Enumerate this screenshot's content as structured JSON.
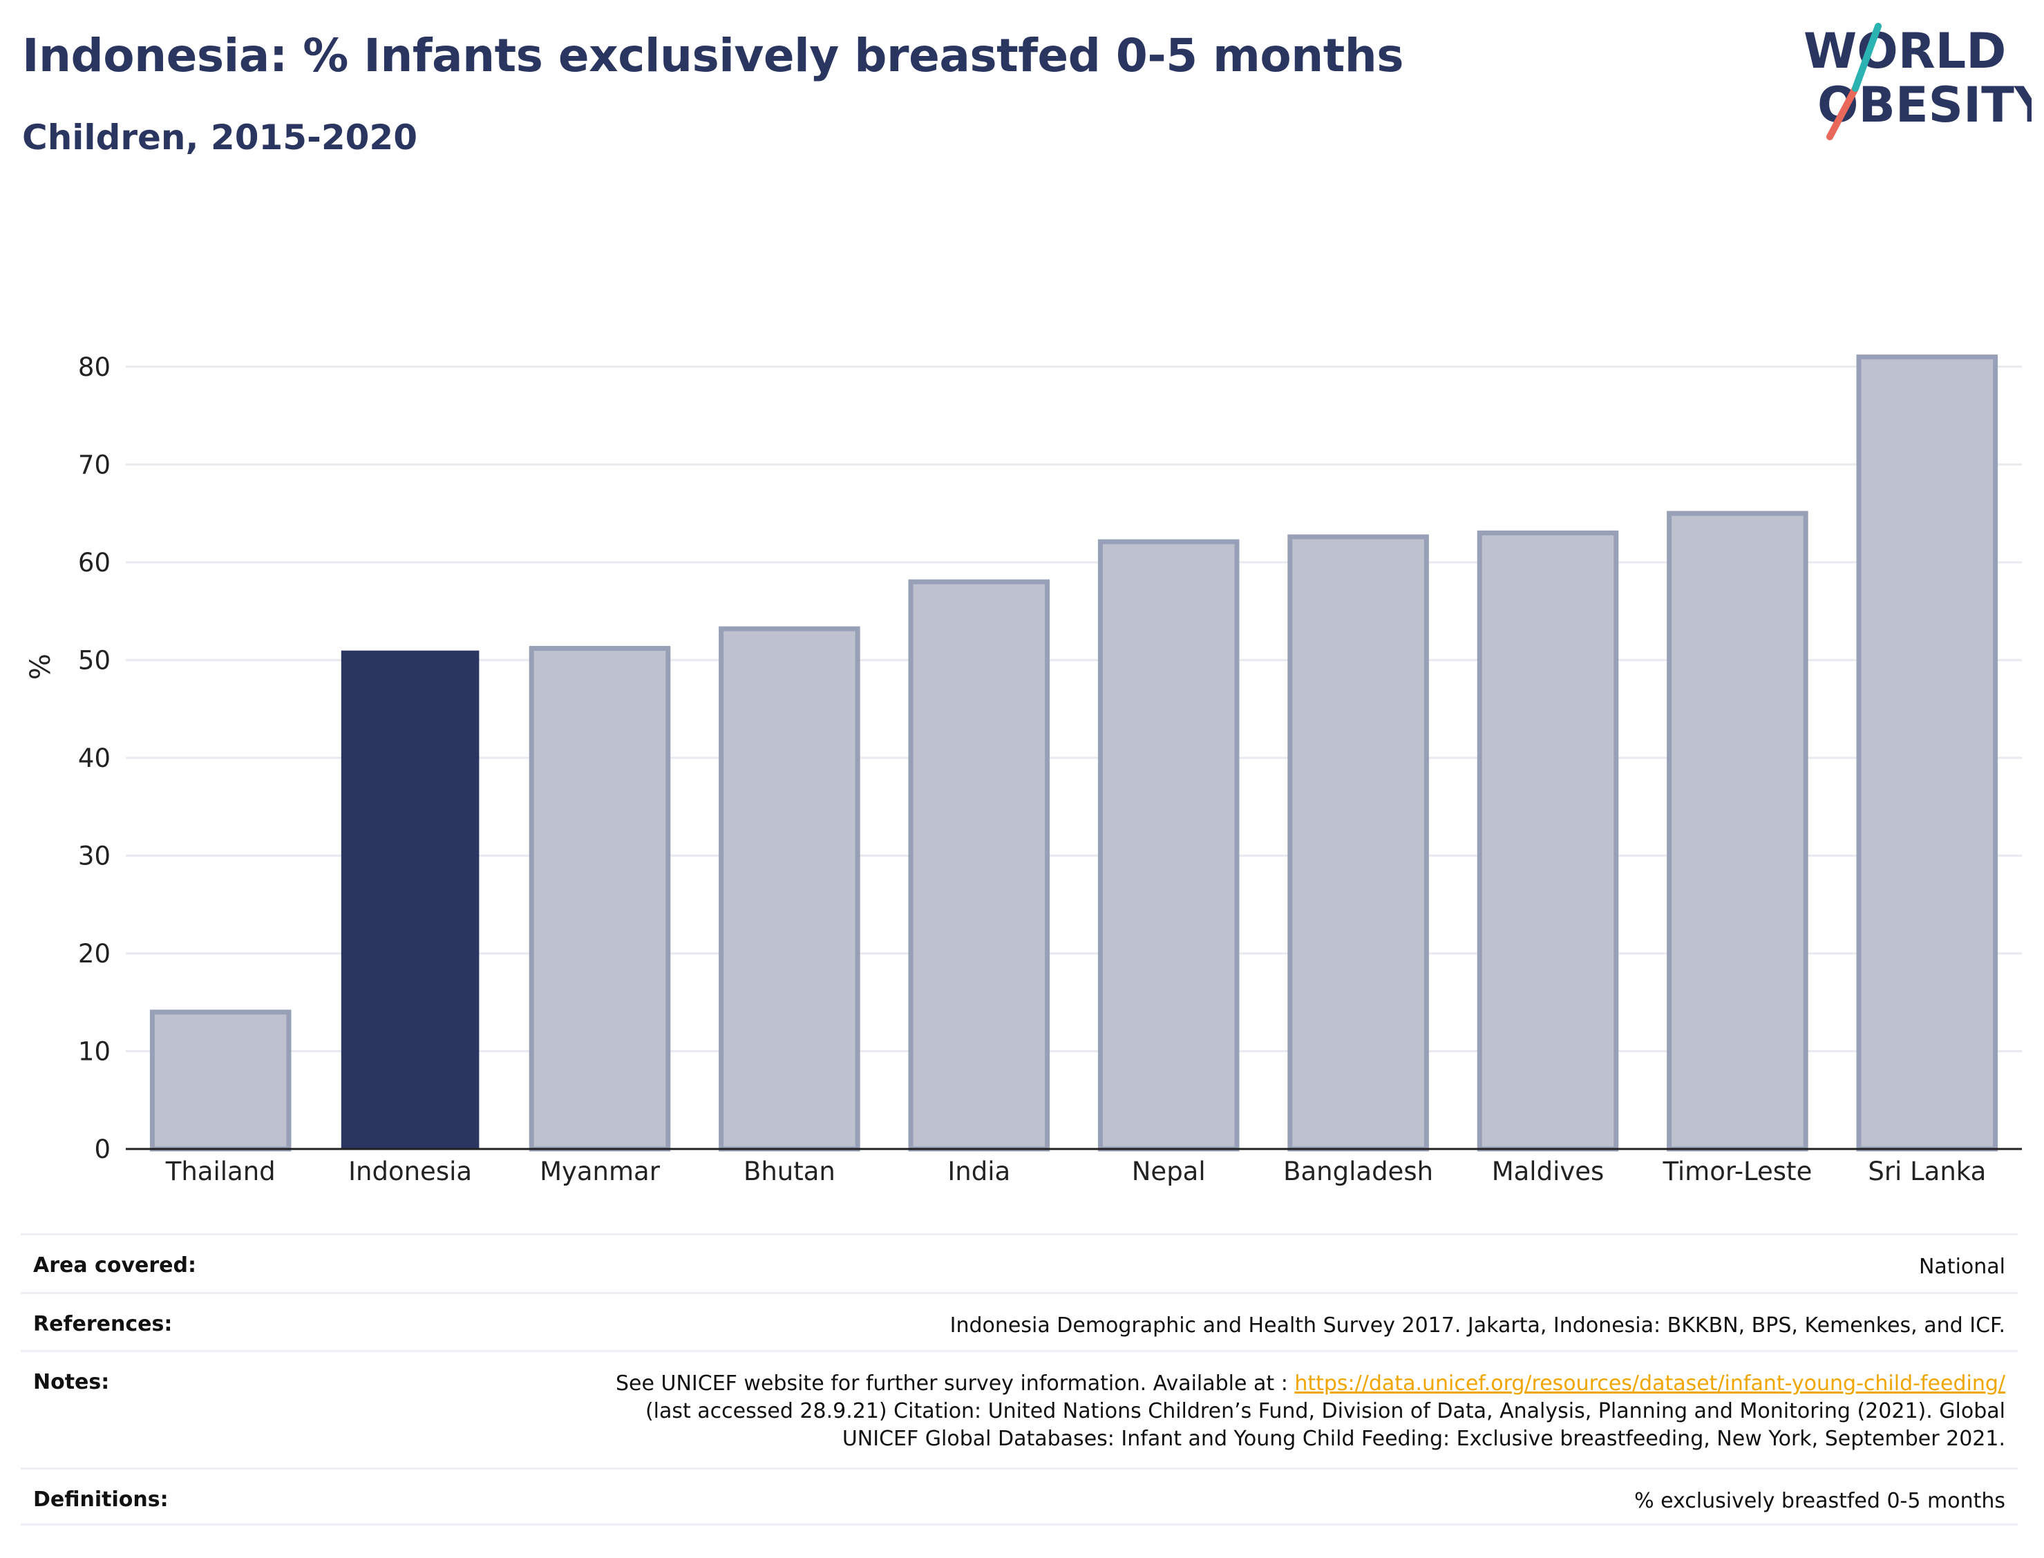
{
  "header": {
    "title": "Indonesia: % Infants exclusively breastfed 0-5 months",
    "subtitle": "Children, 2015-2020"
  },
  "logo": {
    "line1": "WORLD",
    "line2": "OBESITY"
  },
  "colors": {
    "highlight": "#2b3660",
    "other": "#bec2cf",
    "other_stroke": "#98a0b8",
    "link": "#f0a500"
  },
  "chart_data": {
    "type": "bar",
    "categories": [
      "Thailand",
      "Indonesia",
      "Myanmar",
      "Bhutan",
      "India",
      "Nepal",
      "Bangladesh",
      "Maldives",
      "Timor-Leste",
      "Sri Lanka"
    ],
    "values": [
      14.0,
      50.9,
      51.2,
      53.2,
      58.0,
      62.1,
      62.6,
      63.0,
      65.0,
      81.0
    ],
    "highlight": "Indonesia",
    "ylabel": "%",
    "xlabel": "",
    "ylim": [
      0,
      85
    ],
    "yticks": [
      0,
      10,
      20,
      30,
      40,
      50,
      60,
      70,
      80
    ],
    "grid": true
  },
  "info": {
    "area": {
      "label": "Area covered:",
      "value": "National"
    },
    "references": {
      "label": "References:",
      "value": "Indonesia Demographic and Health Survey 2017. Jakarta, Indonesia: BKKBN, BPS, Kemenkes, and ICF."
    },
    "notes": {
      "label": "Notes:",
      "line1_prefix": "See UNICEF website for further survey information. Available at : ",
      "link": "https://data.unicef.org/resources/dataset/infant-young-child-feeding/",
      "line2": "(last accessed 28.9.21) Citation: United Nations Children’s Fund, Division of Data, Analysis, Planning and Monitoring (2021). Global",
      "line3": "UNICEF Global Databases: Infant and Young Child Feeding: Exclusive breastfeeding, New York, September 2021."
    },
    "definitions": {
      "label": "Definitions:",
      "value": "% exclusively breastfed 0-5 months"
    }
  }
}
